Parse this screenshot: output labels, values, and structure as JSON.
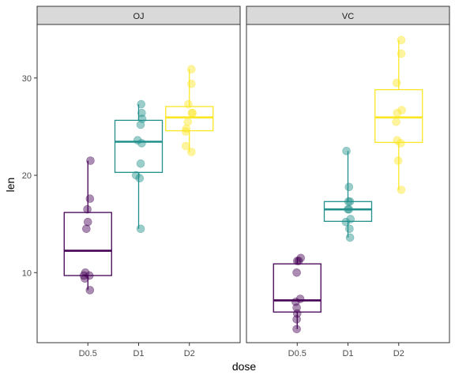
{
  "chart_data": {
    "type": "boxplot",
    "xlabel": "dose",
    "ylabel": "len",
    "ylim": [
      2.8,
      35.5
    ],
    "yticks": [
      10,
      20,
      30
    ],
    "categories": [
      "D0.5",
      "D1",
      "D2"
    ],
    "colors": {
      "D0.5": "#440154",
      "D1": "#21908C",
      "D2": "#FDE725"
    },
    "facets": [
      {
        "label": "OJ",
        "groups": [
          {
            "dose": "D0.5",
            "q1": 9.7,
            "median": 12.25,
            "q3": 16.18,
            "whisker_low": 8.2,
            "whisker_high": 21.5,
            "points": [
              [
                0.05,
                21.5
              ],
              [
                0.04,
                17.6
              ],
              [
                -0.01,
                16.5
              ],
              [
                0.0,
                15.2
              ],
              [
                -0.03,
                14.5
              ],
              [
                -0.05,
                10.0
              ],
              [
                -0.08,
                9.7
              ],
              [
                0.03,
                9.7
              ],
              [
                -0.06,
                9.4
              ],
              [
                0.04,
                8.2
              ]
            ]
          },
          {
            "dose": "D1",
            "q1": 20.3,
            "median": 23.45,
            "q3": 25.65,
            "whisker_low": 14.5,
            "whisker_high": 27.3,
            "points": [
              [
                0.05,
                27.3
              ],
              [
                0.06,
                26.4
              ],
              [
                0.07,
                25.8
              ],
              [
                0.04,
                25.2
              ],
              [
                -0.02,
                23.6
              ],
              [
                0.06,
                23.3
              ],
              [
                0.04,
                21.2
              ],
              [
                -0.05,
                20.0
              ],
              [
                0.02,
                19.7
              ],
              [
                0.04,
                14.5
              ]
            ]
          },
          {
            "dose": "D2",
            "q1": 24.58,
            "median": 25.95,
            "q3": 27.07,
            "whisker_low": 22.4,
            "whisker_high": 30.9,
            "points": [
              [
                0.04,
                30.9
              ],
              [
                0.04,
                29.4
              ],
              [
                -0.02,
                27.3
              ],
              [
                0.05,
                26.4
              ],
              [
                0.06,
                26.4
              ],
              [
                -0.03,
                25.5
              ],
              [
                -0.06,
                24.8
              ],
              [
                -0.07,
                24.5
              ],
              [
                -0.07,
                23.0
              ],
              [
                0.04,
                22.4
              ]
            ]
          }
        ]
      },
      {
        "label": "VC",
        "groups": [
          {
            "dose": "D0.5",
            "q1": 5.95,
            "median": 7.15,
            "q3": 10.9,
            "whisker_low": 4.2,
            "whisker_high": 11.5,
            "points": [
              [
                0.07,
                11.5
              ],
              [
                0.03,
                11.2
              ],
              [
                0.0,
                11.2
              ],
              [
                -0.01,
                10.0
              ],
              [
                0.06,
                7.3
              ],
              [
                -0.03,
                7.0
              ],
              [
                -0.01,
                6.4
              ],
              [
                0.0,
                5.8
              ],
              [
                -0.01,
                5.2
              ],
              [
                -0.01,
                4.2
              ]
            ]
          },
          {
            "dose": "D1",
            "q1": 15.27,
            "median": 16.5,
            "q3": 17.3,
            "whisker_low": 13.6,
            "whisker_high": 22.5,
            "points": [
              [
                -0.03,
                22.5
              ],
              [
                0.02,
                18.8
              ],
              [
                0.04,
                17.3
              ],
              [
                0.01,
                17.3
              ],
              [
                0.02,
                16.5
              ],
              [
                0.0,
                16.5
              ],
              [
                0.05,
                15.5
              ],
              [
                -0.04,
                15.2
              ],
              [
                0.03,
                14.5
              ],
              [
                0.04,
                13.6
              ]
            ]
          },
          {
            "dose": "D2",
            "q1": 23.38,
            "median": 25.95,
            "q3": 28.8,
            "whisker_low": 18.5,
            "whisker_high": 33.9,
            "points": [
              [
                0.05,
                33.9
              ],
              [
                0.05,
                32.5
              ],
              [
                -0.04,
                29.5
              ],
              [
                0.06,
                26.7
              ],
              [
                -0.03,
                26.4
              ],
              [
                -0.05,
                25.5
              ],
              [
                -0.03,
                23.6
              ],
              [
                0.04,
                23.3
              ],
              [
                -0.01,
                21.5
              ],
              [
                0.05,
                18.5
              ]
            ]
          }
        ]
      }
    ]
  }
}
